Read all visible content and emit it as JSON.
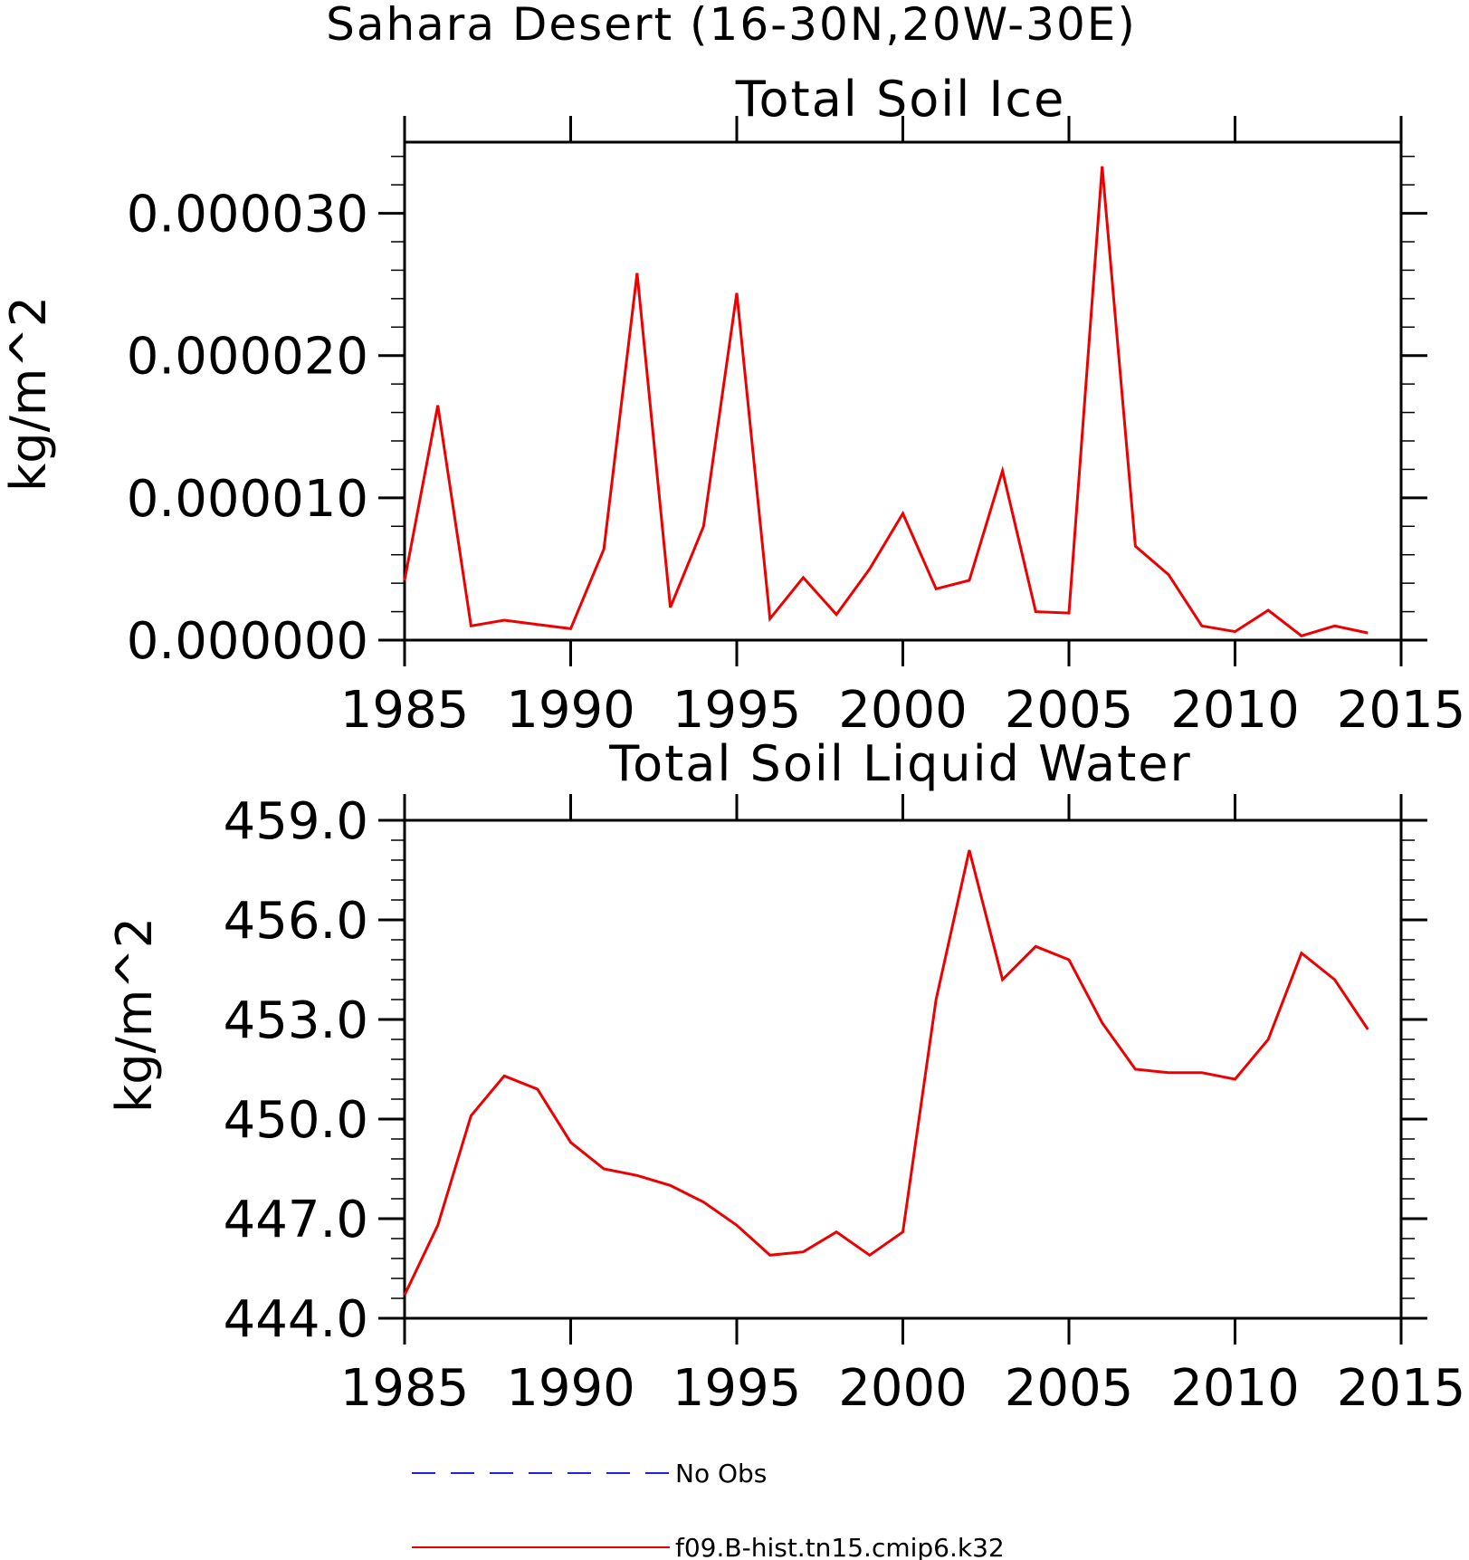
{
  "figure_title": "Sahara Desert (16-30N,20W-30E)",
  "legend": [
    {
      "label": "No Obs",
      "color": "#2222dd",
      "style": "dashed"
    },
    {
      "label": "f09.B-hist.tn15.cmip6.k32",
      "color": "#ee0000",
      "style": "solid"
    }
  ],
  "chart_data": [
    {
      "type": "line",
      "title": "Total Soil Ice",
      "xlabel": "",
      "ylabel": "kg/m^2",
      "xlim": [
        1985,
        2015
      ],
      "ylim": [
        0,
        3.5e-05
      ],
      "xticks": [
        1985,
        1990,
        1995,
        2000,
        2005,
        2010,
        2015
      ],
      "xtick_labels": [
        "1985",
        "1990",
        "1995",
        "2000",
        "2005",
        "2010",
        "2015"
      ],
      "yticks": [
        0,
        1e-05,
        2e-05,
        3e-05
      ],
      "ytick_labels": [
        "0.000000",
        "0.000010",
        "0.000020",
        "0.000030"
      ],
      "series": [
        {
          "name": "f09.B-hist.tn15.cmip6.k32",
          "color": "#ee0000",
          "x": [
            1985,
            1986,
            1987,
            1988,
            1989,
            1990,
            1991,
            1992,
            1993,
            1994,
            1995,
            1996,
            1997,
            1998,
            1999,
            2000,
            2001,
            2002,
            2003,
            2004,
            2005,
            2006,
            2007,
            2008,
            2009,
            2010,
            2011,
            2012,
            2013,
            2014
          ],
          "values": [
            4.2e-06,
            1.65e-05,
            1e-06,
            1.4e-06,
            1.1e-06,
            8e-07,
            6.4e-06,
            2.58e-05,
            2.3e-06,
            8e-06,
            2.44e-05,
            1.5e-06,
            4.4e-06,
            1.8e-06,
            5e-06,
            8.9e-06,
            3.6e-06,
            4.2e-06,
            1.19e-05,
            2e-06,
            1.9e-06,
            3.33e-05,
            6.6e-06,
            4.6e-06,
            1e-06,
            6e-07,
            2.1e-06,
            3e-07,
            1e-06,
            5e-07
          ]
        }
      ],
      "grid": false
    },
    {
      "type": "line",
      "title": "Total Soil Liquid Water",
      "xlabel": "",
      "ylabel": "kg/m^2",
      "xlim": [
        1985,
        2015
      ],
      "ylim": [
        444,
        459
      ],
      "xticks": [
        1985,
        1990,
        1995,
        2000,
        2005,
        2010,
        2015
      ],
      "xtick_labels": [
        "1985",
        "1990",
        "1995",
        "2000",
        "2005",
        "2010",
        "2015"
      ],
      "yticks": [
        444,
        447,
        450,
        453,
        456,
        459
      ],
      "ytick_labels": [
        "444.0",
        "447.0",
        "450.0",
        "453.0",
        "456.0",
        "459.0"
      ],
      "series": [
        {
          "name": "f09.B-hist.tn15.cmip6.k32",
          "color": "#ee0000",
          "x": [
            1985,
            1986,
            1987,
            1988,
            1989,
            1990,
            1991,
            1992,
            1993,
            1994,
            1995,
            1996,
            1997,
            1998,
            1999,
            2000,
            2001,
            2002,
            2003,
            2004,
            2005,
            2006,
            2007,
            2008,
            2009,
            2010,
            2011,
            2012,
            2013,
            2014
          ],
          "values": [
            444.7,
            446.8,
            450.1,
            451.3,
            450.9,
            449.3,
            448.5,
            448.3,
            448.0,
            447.5,
            446.8,
            445.9,
            446.0,
            446.6,
            445.9,
            446.6,
            453.6,
            458.1,
            454.2,
            455.2,
            454.8,
            452.9,
            451.5,
            451.4,
            451.4,
            451.2,
            452.4,
            455.0,
            454.2,
            452.7
          ]
        }
      ],
      "grid": false
    }
  ]
}
